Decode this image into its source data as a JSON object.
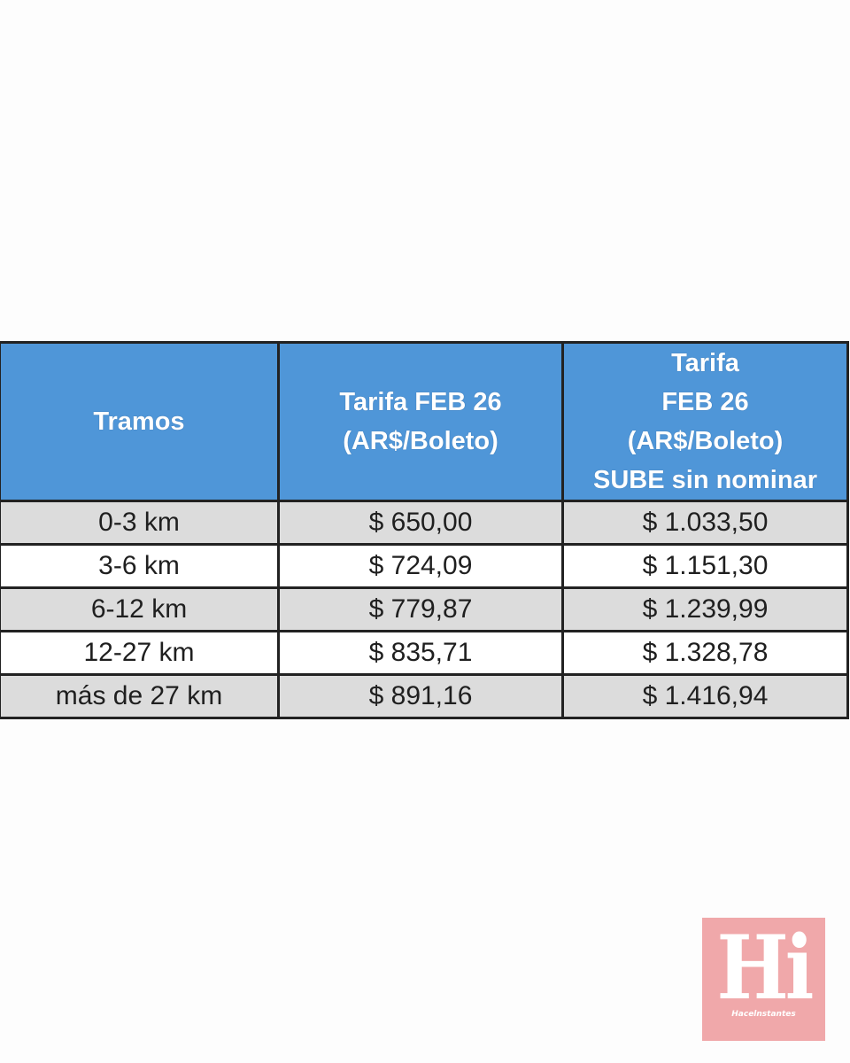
{
  "table": {
    "headers": {
      "col1": [
        "Tramos"
      ],
      "col2": [
        "Tarifa FEB 26",
        "(AR$/Boleto)"
      ],
      "col3": [
        "Tarifa",
        "FEB 26",
        "(AR$/Boleto)",
        "SUBE sin nominar"
      ]
    },
    "rows": [
      {
        "tramo": "0-3 km",
        "tarifa": "$ 650,00",
        "sin_nominar": "$ 1.033,50"
      },
      {
        "tramo": "3-6 km",
        "tarifa": "$ 724,09",
        "sin_nominar": "$ 1.151,30"
      },
      {
        "tramo": "6-12 km",
        "tarifa": "$ 779,87",
        "sin_nominar": "$ 1.239,99"
      },
      {
        "tramo": "12-27 km",
        "tarifa": "$ 835,71",
        "sin_nominar": "$ 1.328,78"
      },
      {
        "tramo": "más de 27 km",
        "tarifa": "$ 891,16",
        "sin_nominar": "$ 1.416,94"
      }
    ],
    "colors": {
      "header_bg": "#4f96d8",
      "shaded_row": "#dcdcdc",
      "plain_row": "#ffffff"
    }
  },
  "logo": {
    "mark": "Hi",
    "text": "Hacelnstantes",
    "bg_color": "#f0a8aa"
  }
}
